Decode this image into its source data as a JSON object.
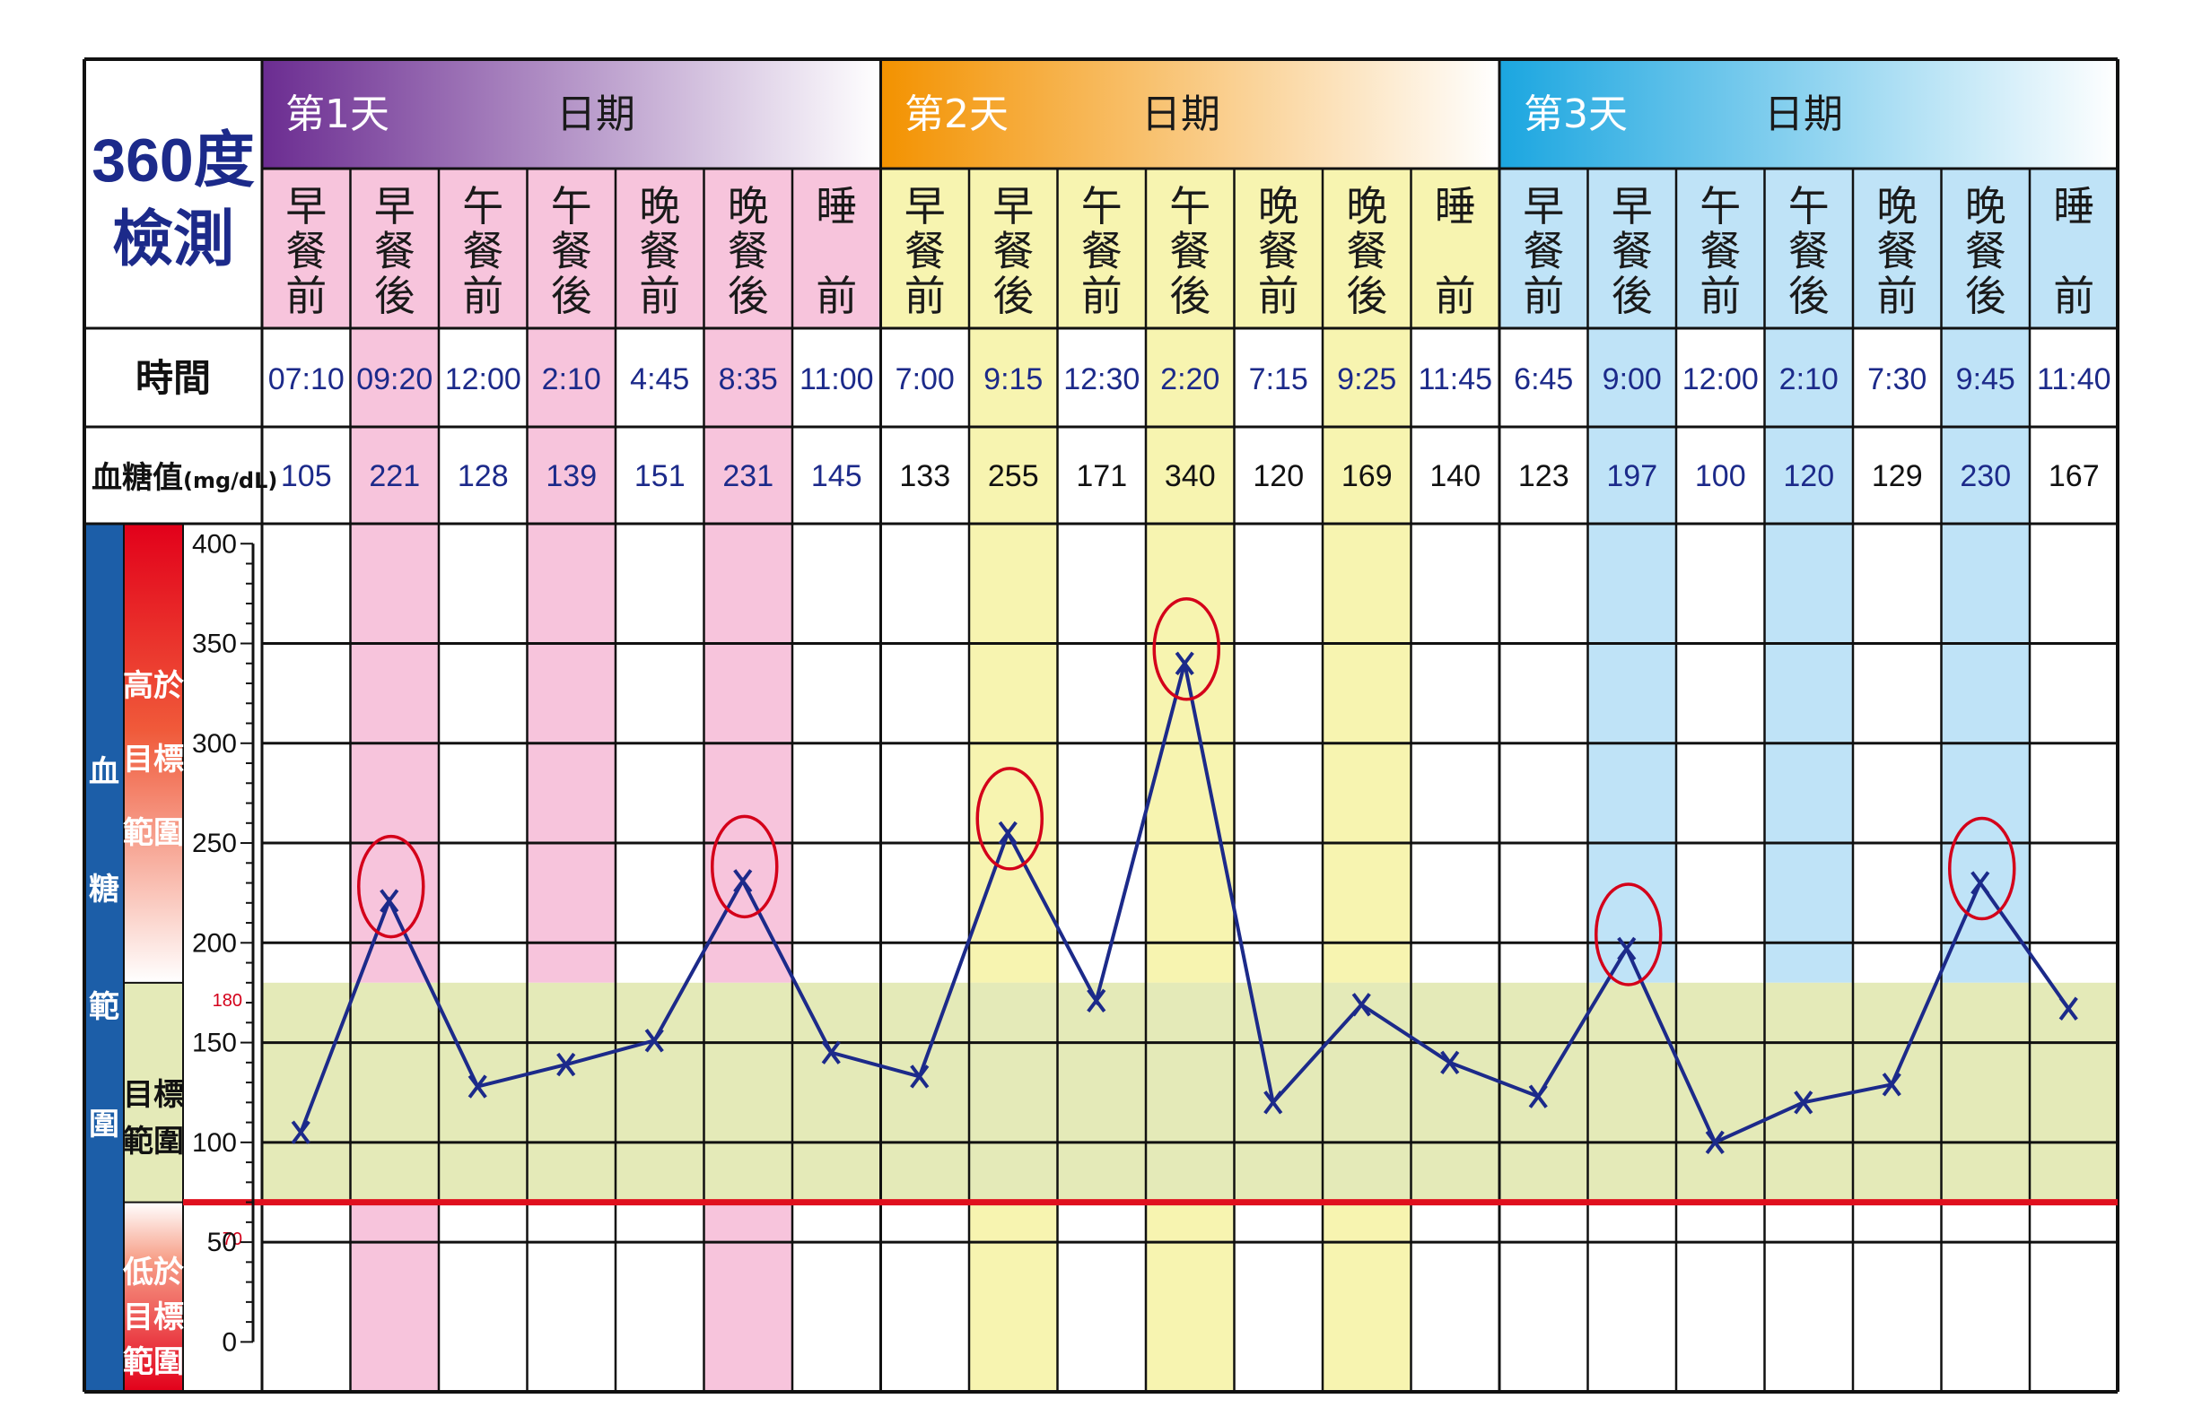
{
  "title_lines": [
    "360度",
    "檢測"
  ],
  "header": {
    "days": [
      {
        "label": "第1天",
        "date_label": "日期",
        "gradient_from": "#6b2c91",
        "gradient_to": "#ffffff"
      },
      {
        "label": "第2天",
        "date_label": "日期",
        "gradient_from": "#f39200",
        "gradient_to": "#ffffff"
      },
      {
        "label": "第3天",
        "date_label": "日期",
        "gradient_from": "#1ba6e0",
        "gradient_to": "#ffffff"
      }
    ]
  },
  "meals": [
    [
      "早",
      "餐",
      "前"
    ],
    [
      "早",
      "餐",
      "後"
    ],
    [
      "午",
      "餐",
      "前"
    ],
    [
      "午",
      "餐",
      "後"
    ],
    [
      "晚",
      "餐",
      "前"
    ],
    [
      "晚",
      "餐",
      "後"
    ],
    [
      "睡",
      "",
      "前"
    ]
  ],
  "row_labels": {
    "time": "時間",
    "value_main": "血糖值",
    "value_unit": "(mg/dL)"
  },
  "times": [
    "07:10",
    "09:20",
    "12:00",
    "2:10",
    "4:45",
    "8:35",
    "11:00",
    "7:00",
    "9:15",
    "12:30",
    "2:20",
    "7:15",
    "9:25",
    "11:45",
    "6:45",
    "9:00",
    "12:00",
    "2:10",
    "7:30",
    "9:45",
    "11:40"
  ],
  "side_labels": {
    "blood_range": [
      "血",
      "糖",
      "範",
      "圍"
    ],
    "above": [
      "高於",
      "目標",
      "範圍"
    ],
    "in_target": [
      "目標",
      "範圍"
    ],
    "below": [
      "低於",
      "目標",
      "範圍"
    ]
  },
  "markers": {
    "upper": "180",
    "lower": "70"
  },
  "colors": {
    "day1_tint": "#f7c4dc",
    "day2_tint": "#f7f4b0",
    "day3_tint": "#bfe3f7",
    "target_band": "#e4eab8",
    "line": "#1c2a8a",
    "circle": "#d4001a",
    "limit_line": "#e0101e",
    "sidebar_blue": "#1c5ea8"
  },
  "chart_data": {
    "type": "line",
    "x": [
      "早餐前",
      "早餐後",
      "午餐前",
      "午餐後",
      "晚餐前",
      "晚餐後",
      "睡前",
      "早餐前",
      "早餐後",
      "午餐前",
      "午餐後",
      "晚餐前",
      "晚餐後",
      "睡前",
      "早餐前",
      "早餐後",
      "午餐前",
      "午餐後",
      "晚餐前",
      "晚餐後",
      "睡前"
    ],
    "values": [
      105,
      221,
      128,
      139,
      151,
      231,
      145,
      133,
      255,
      171,
      340,
      120,
      169,
      140,
      123,
      197,
      100,
      120,
      129,
      230,
      167
    ],
    "ylabel": "血糖範圍",
    "ylim": [
      0,
      400
    ],
    "yticks": [
      0,
      50,
      100,
      150,
      200,
      250,
      300,
      350,
      400
    ],
    "target_range": [
      70,
      180
    ],
    "circled_indices": [
      1,
      5,
      8,
      10,
      15,
      19
    ]
  }
}
